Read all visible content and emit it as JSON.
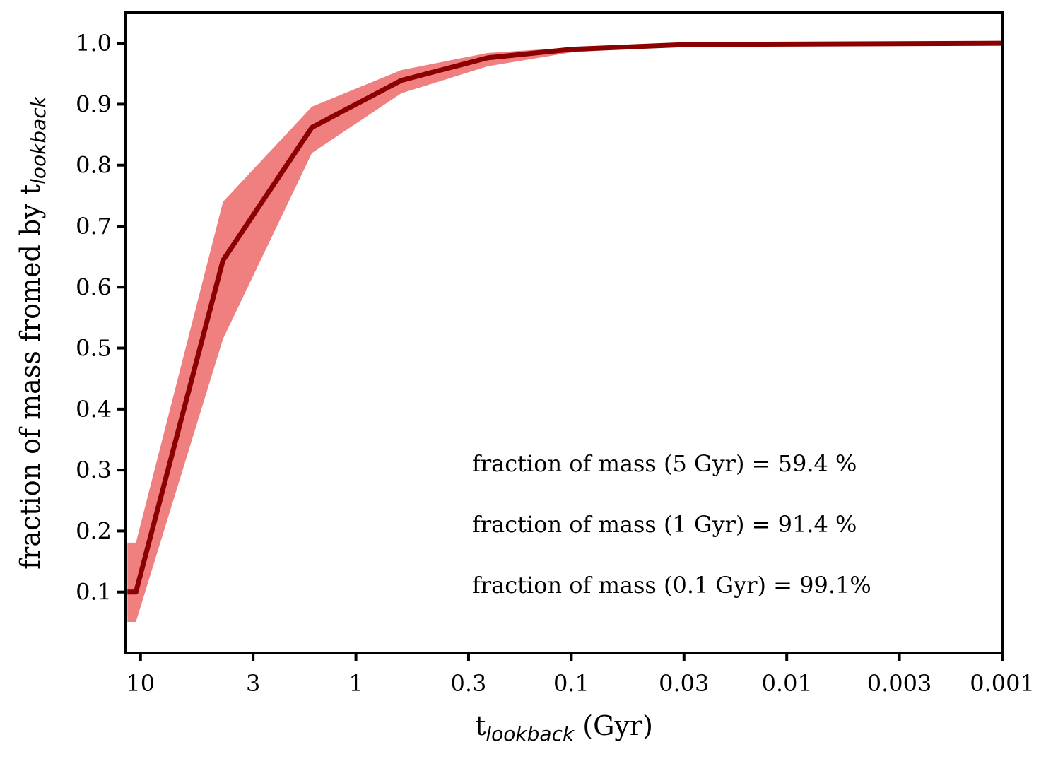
{
  "chart_data": {
    "type": "line",
    "xlabel": {
      "text": "t",
      "sub": "lookback",
      "unit": " (Gyr)"
    },
    "ylabel": {
      "text": "fraction of mass fromed by t",
      "sub": "lookback"
    },
    "x": [
      11.5,
      10.5,
      4.14,
      1.6,
      0.615,
      0.245,
      0.1,
      0.0285,
      0.001
    ],
    "series": [
      {
        "color": "#8b0000",
        "values": [
          0.1,
          0.1,
          0.644,
          0.862,
          0.939,
          0.976,
          0.99,
          0.998,
          1.0
        ]
      }
    ],
    "band": {
      "color": "#f08080",
      "lower": [
        0.051,
        0.051,
        0.515,
        0.82,
        0.918,
        0.962,
        0.985,
        0.997,
        1.0
      ],
      "upper": [
        0.181,
        0.181,
        0.74,
        0.896,
        0.956,
        0.984,
        0.993,
        0.999,
        1.0
      ]
    },
    "xlim": [
      11.7,
      0.001
    ],
    "xscale": "log",
    "xticks": [
      10,
      3,
      1,
      0.3,
      0.1,
      0.03,
      0.01,
      0.003,
      0.001
    ],
    "ylim": [
      0.0,
      1.05
    ],
    "yticks": [
      0.1,
      0.2,
      0.3,
      0.4,
      0.5,
      0.6,
      0.7,
      0.8,
      0.9,
      {
        "value": 1,
        "label": "1.0"
      }
    ],
    "annotations": [
      "fraction of mass (5 Gyr) = 59.4 %",
      "fraction of mass (1 Gyr) = 91.4 %",
      "fraction of mass (0.1 Gyr) = 99.1%"
    ]
  }
}
